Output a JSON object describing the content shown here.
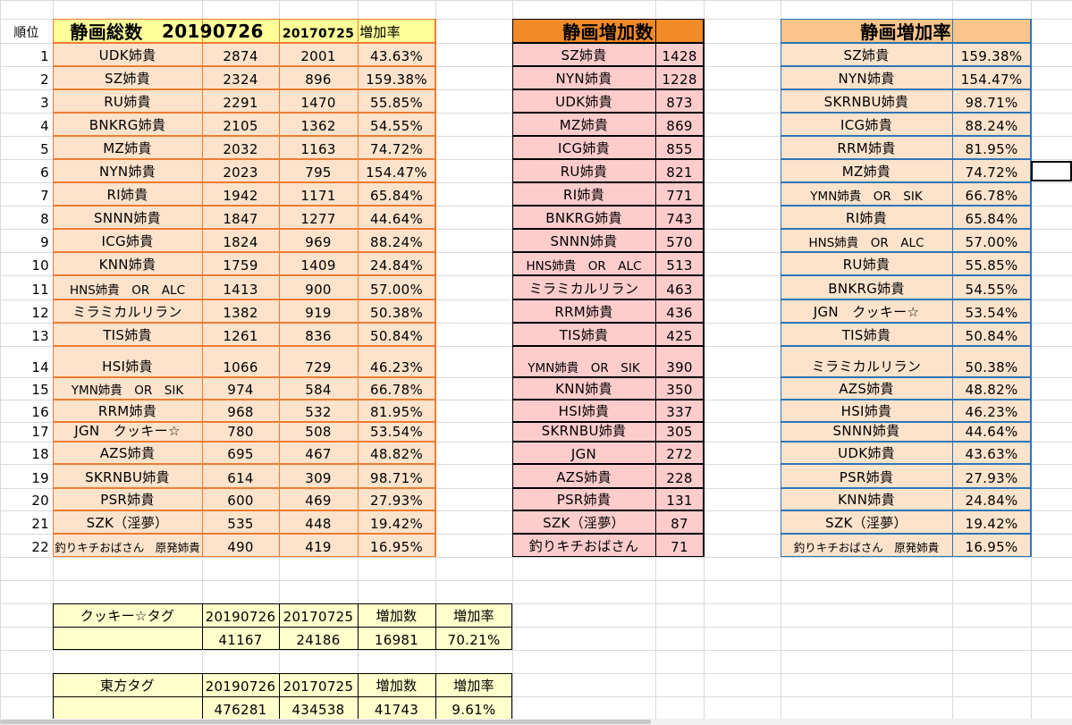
{
  "colors": {
    "total_fill": "#fde3cc",
    "total_header": "#ffff99",
    "total_border": "#ed7d31",
    "inc_fill": "#ffcccc",
    "inc_header": "#f28b27",
    "inc_border": "#000000",
    "rate_fill": "#fde3cc",
    "rate_header": "#fac48a",
    "rate_border": "#2e75b6",
    "tag_fill": "#ffffcc",
    "gridline": "#d9d9d9"
  },
  "total_table": {
    "rank_label": "順位",
    "title": "静画総数",
    "date_new": "20190726",
    "date_old": "20170725",
    "rate_label": "増加率",
    "rows": [
      {
        "rank": "1",
        "name": "UDK姉貴",
        "new": "2874",
        "old": "2001",
        "rate": "43.63%"
      },
      {
        "rank": "2",
        "name": "SZ姉貴",
        "new": "2324",
        "old": "896",
        "rate": "159.38%"
      },
      {
        "rank": "3",
        "name": "RU姉貴",
        "new": "2291",
        "old": "1470",
        "rate": "55.85%"
      },
      {
        "rank": "4",
        "name": "BNKRG姉貴",
        "new": "2105",
        "old": "1362",
        "rate": "54.55%"
      },
      {
        "rank": "5",
        "name": "MZ姉貴",
        "new": "2032",
        "old": "1163",
        "rate": "74.72%"
      },
      {
        "rank": "6",
        "name": "NYN姉貴",
        "new": "2023",
        "old": "795",
        "rate": "154.47%"
      },
      {
        "rank": "7",
        "name": "RI姉貴",
        "new": "1942",
        "old": "1171",
        "rate": "65.84%"
      },
      {
        "rank": "8",
        "name": "SNNN姉貴",
        "new": "1847",
        "old": "1277",
        "rate": "44.64%"
      },
      {
        "rank": "9",
        "name": "ICG姉貴",
        "new": "1824",
        "old": "969",
        "rate": "88.24%"
      },
      {
        "rank": "10",
        "name": "KNN姉貴",
        "new": "1759",
        "old": "1409",
        "rate": "24.84%"
      },
      {
        "rank": "11",
        "name": "HNS姉貴　OR　ALC",
        "new": "1413",
        "old": "900",
        "rate": "57.00%"
      },
      {
        "rank": "12",
        "name": "ミラミカルリラン",
        "new": "1382",
        "old": "919",
        "rate": "50.38%"
      },
      {
        "rank": "13",
        "name": "TIS姉貴",
        "new": "1261",
        "old": "836",
        "rate": "50.84%"
      },
      {
        "rank": "14",
        "name": "HSI姉貴",
        "new": "1066",
        "old": "729",
        "rate": "46.23%"
      },
      {
        "rank": "15",
        "name": "YMN姉貴　OR　SIK",
        "new": "974",
        "old": "584",
        "rate": "66.78%"
      },
      {
        "rank": "16",
        "name": "RRM姉貴",
        "new": "968",
        "old": "532",
        "rate": "81.95%"
      },
      {
        "rank": "17",
        "name": "JGN　クッキー☆",
        "new": "780",
        "old": "508",
        "rate": "53.54%"
      },
      {
        "rank": "18",
        "name": "AZS姉貴",
        "new": "695",
        "old": "467",
        "rate": "48.82%"
      },
      {
        "rank": "19",
        "name": "SKRNBU姉貴",
        "new": "614",
        "old": "309",
        "rate": "98.71%"
      },
      {
        "rank": "20",
        "name": "PSR姉貴",
        "new": "600",
        "old": "469",
        "rate": "27.93%"
      },
      {
        "rank": "21",
        "name": "SZK（淫夢）",
        "new": "535",
        "old": "448",
        "rate": "19.42%"
      },
      {
        "rank": "22",
        "name": "釣りキチおばさん　原発姉貴",
        "new": "490",
        "old": "419",
        "rate": "16.95%"
      }
    ]
  },
  "increase_table": {
    "title": "静画増加数",
    "rows": [
      {
        "name": "SZ姉貴",
        "value": "1428"
      },
      {
        "name": "NYN姉貴",
        "value": "1228"
      },
      {
        "name": "UDK姉貴",
        "value": "873"
      },
      {
        "name": "MZ姉貴",
        "value": "869"
      },
      {
        "name": "ICG姉貴",
        "value": "855"
      },
      {
        "name": "RU姉貴",
        "value": "821"
      },
      {
        "name": "RI姉貴",
        "value": "771"
      },
      {
        "name": "BNKRG姉貴",
        "value": "743"
      },
      {
        "name": "SNNN姉貴",
        "value": "570"
      },
      {
        "name": "HNS姉貴　OR　ALC",
        "value": "513"
      },
      {
        "name": "ミラミカルリラン",
        "value": "463"
      },
      {
        "name": "RRM姉貴",
        "value": "436"
      },
      {
        "name": "TIS姉貴",
        "value": "425"
      },
      {
        "name": "YMN姉貴　OR　SIK",
        "value": "390"
      },
      {
        "name": "KNN姉貴",
        "value": "350"
      },
      {
        "name": "HSI姉貴",
        "value": "337"
      },
      {
        "name": "SKRNBU姉貴",
        "value": "305"
      },
      {
        "name": "JGN",
        "value": "272"
      },
      {
        "name": "AZS姉貴",
        "value": "228"
      },
      {
        "name": "PSR姉貴",
        "value": "131"
      },
      {
        "name": "SZK（淫夢）",
        "value": "87"
      },
      {
        "name": "釣りキチおばさん",
        "value": "71"
      }
    ]
  },
  "rate_table": {
    "title": "静画増加率",
    "rows": [
      {
        "name": "SZ姉貴",
        "value": "159.38%"
      },
      {
        "name": "NYN姉貴",
        "value": "154.47%"
      },
      {
        "name": "SKRNBU姉貴",
        "value": "98.71%"
      },
      {
        "name": "ICG姉貴",
        "value": "88.24%"
      },
      {
        "name": "RRM姉貴",
        "value": "81.95%"
      },
      {
        "name": "MZ姉貴",
        "value": "74.72%"
      },
      {
        "name": "YMN姉貴　OR　SIK",
        "value": "66.78%"
      },
      {
        "name": "RI姉貴",
        "value": "65.84%"
      },
      {
        "name": "HNS姉貴　OR　ALC",
        "value": "57.00%"
      },
      {
        "name": "RU姉貴",
        "value": "55.85%"
      },
      {
        "name": "BNKRG姉貴",
        "value": "54.55%"
      },
      {
        "name": "JGN　クッキー☆",
        "value": "53.54%"
      },
      {
        "name": "TIS姉貴",
        "value": "50.84%"
      },
      {
        "name": "ミラミカルリラン",
        "value": "50.38%"
      },
      {
        "name": "AZS姉貴",
        "value": "48.82%"
      },
      {
        "name": "HSI姉貴",
        "value": "46.23%"
      },
      {
        "name": "SNNN姉貴",
        "value": "44.64%"
      },
      {
        "name": "UDK姉貴",
        "value": "43.63%"
      },
      {
        "name": "PSR姉貴",
        "value": "27.93%"
      },
      {
        "name": "KNN姉貴",
        "value": "24.84%"
      },
      {
        "name": "SZK（淫夢）",
        "value": "19.42%"
      },
      {
        "name": "釣りキチおばさん　原発姉貴",
        "value": "16.95%"
      }
    ]
  },
  "tag_tables": [
    {
      "label": "クッキー☆タグ",
      "date_new": "20190726",
      "date_old": "20170725",
      "inc_label": "増加数",
      "rate_label": "増加率",
      "new": "41167",
      "old": "24186",
      "inc": "16981",
      "rate": "70.21%"
    },
    {
      "label": "東方タグ",
      "date_new": "20190726",
      "date_old": "20170725",
      "inc_label": "増加数",
      "rate_label": "増加率",
      "new": "476281",
      "old": "434538",
      "inc": "41743",
      "rate": "9.61%"
    }
  ]
}
